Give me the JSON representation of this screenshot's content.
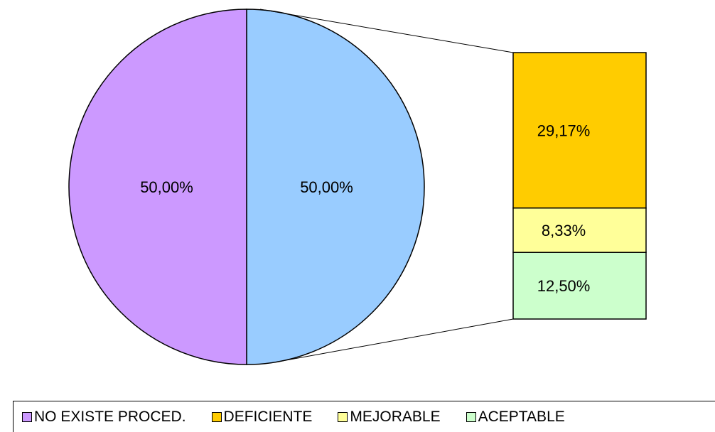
{
  "chart_data": {
    "type": "pie",
    "subtype": "bar-of-pie",
    "pie_slices": [
      {
        "name": "NO EXISTE PROCED.",
        "value": 50.0,
        "label": "50,00%",
        "color": "#CC99FF"
      },
      {
        "name": "",
        "value": 50.0,
        "label": "50,00%",
        "color": "#99CCFF"
      }
    ],
    "bar_segments": [
      {
        "name": "DEFICIENTE",
        "value": 29.17,
        "label": "29,17%",
        "color": "#FFCC00"
      },
      {
        "name": "MEJORABLE",
        "value": 8.33,
        "label": "8,33%",
        "color": "#FFFF99"
      },
      {
        "name": "ACEPTABLE",
        "value": 12.5,
        "label": "12,50%",
        "color": "#CCFFCC"
      }
    ],
    "legend": {
      "placement": "bottom",
      "items": [
        {
          "label": "NO EXISTE PROCED.",
          "color": "#CC99FF"
        },
        {
          "label": "DEFICIENTE",
          "color": "#FFCC00"
        },
        {
          "label": "MEJORABLE",
          "color": "#FFFF99"
        },
        {
          "label": "ACEPTABLE",
          "color": "#CCFFCC"
        }
      ]
    }
  }
}
